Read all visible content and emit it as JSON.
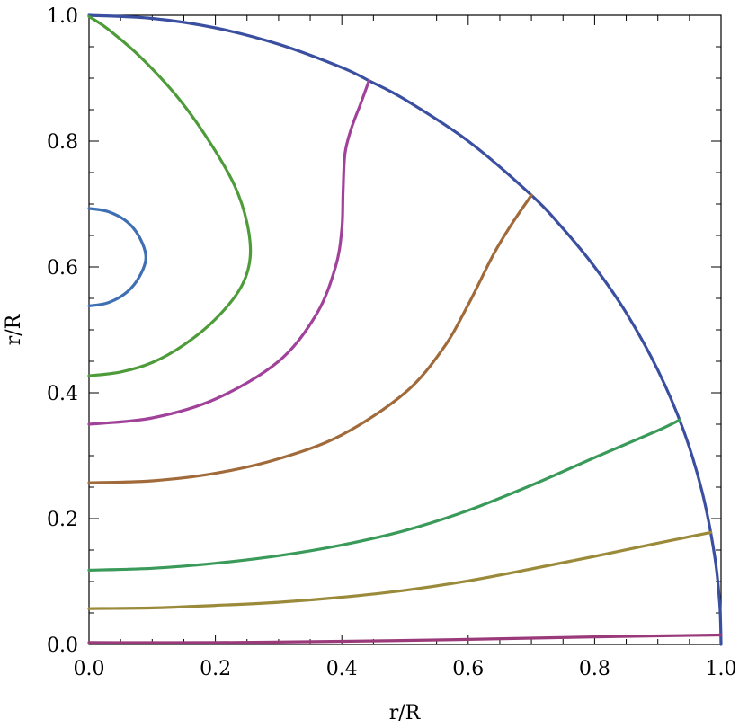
{
  "chart_data": {
    "type": "line",
    "title": "",
    "xlabel": "r/R",
    "ylabel": "r/R",
    "xlim": [
      0,
      1
    ],
    "ylim": [
      0,
      1
    ],
    "x_ticks": [
      "0.0",
      "0.2",
      "0.4",
      "0.6",
      "0.8",
      "1.0"
    ],
    "y_ticks": [
      "0.0",
      "0.2",
      "0.4",
      "0.6",
      "0.8",
      "1.0"
    ],
    "grid": false,
    "legend": "none",
    "series": [
      {
        "color": "#3a4fa0",
        "closed": false,
        "points": [
          [
            1.0,
            0.0
          ],
          [
            0.998,
            0.063
          ],
          [
            0.99,
            0.14
          ],
          [
            0.97,
            0.243
          ],
          [
            0.94,
            0.342
          ],
          [
            0.9,
            0.436
          ],
          [
            0.85,
            0.527
          ],
          [
            0.8,
            0.6
          ],
          [
            0.75,
            0.661
          ],
          [
            0.7,
            0.714
          ],
          [
            0.6,
            0.8
          ],
          [
            0.5,
            0.866
          ],
          [
            0.443,
            0.896
          ],
          [
            0.4,
            0.917
          ],
          [
            0.3,
            0.954
          ],
          [
            0.2,
            0.98
          ],
          [
            0.1,
            0.995
          ],
          [
            0.0,
            1.0
          ]
        ]
      },
      {
        "color": "#3f6fb3",
        "closed": true,
        "points": [
          [
            0.0,
            0.538
          ],
          [
            0.03,
            0.543
          ],
          [
            0.06,
            0.56
          ],
          [
            0.08,
            0.585
          ],
          [
            0.09,
            0.615
          ],
          [
            0.08,
            0.647
          ],
          [
            0.06,
            0.672
          ],
          [
            0.03,
            0.688
          ],
          [
            0.0,
            0.693
          ]
        ]
      },
      {
        "color": "#4e9b3a",
        "closed": false,
        "points": [
          [
            0.0,
            0.427
          ],
          [
            0.05,
            0.433
          ],
          [
            0.1,
            0.448
          ],
          [
            0.15,
            0.476
          ],
          [
            0.2,
            0.517
          ],
          [
            0.24,
            0.567
          ],
          [
            0.255,
            0.615
          ],
          [
            0.25,
            0.67
          ],
          [
            0.23,
            0.73
          ],
          [
            0.19,
            0.8
          ],
          [
            0.14,
            0.87
          ],
          [
            0.08,
            0.935
          ],
          [
            0.03,
            0.978
          ],
          [
            0.0,
            0.998
          ]
        ]
      },
      {
        "color": "#a0429a",
        "closed": false,
        "points": [
          [
            0.0,
            0.35
          ],
          [
            0.1,
            0.36
          ],
          [
            0.2,
            0.39
          ],
          [
            0.3,
            0.45
          ],
          [
            0.36,
            0.525
          ],
          [
            0.39,
            0.6
          ],
          [
            0.4,
            0.66
          ],
          [
            0.402,
            0.72
          ],
          [
            0.405,
            0.78
          ],
          [
            0.415,
            0.82
          ],
          [
            0.43,
            0.86
          ],
          [
            0.443,
            0.896
          ]
        ]
      },
      {
        "color": "#a06a3a",
        "closed": false,
        "points": [
          [
            0.0,
            0.257
          ],
          [
            0.1,
            0.26
          ],
          [
            0.2,
            0.272
          ],
          [
            0.3,
            0.295
          ],
          [
            0.4,
            0.333
          ],
          [
            0.5,
            0.4
          ],
          [
            0.56,
            0.47
          ],
          [
            0.6,
            0.54
          ],
          [
            0.64,
            0.62
          ],
          [
            0.67,
            0.67
          ],
          [
            0.7,
            0.714
          ]
        ]
      },
      {
        "color": "#3a9a5a",
        "closed": false,
        "points": [
          [
            0.0,
            0.118
          ],
          [
            0.1,
            0.121
          ],
          [
            0.2,
            0.129
          ],
          [
            0.3,
            0.141
          ],
          [
            0.4,
            0.158
          ],
          [
            0.5,
            0.181
          ],
          [
            0.6,
            0.213
          ],
          [
            0.7,
            0.253
          ],
          [
            0.8,
            0.297
          ],
          [
            0.9,
            0.34
          ],
          [
            0.935,
            0.357
          ]
        ]
      },
      {
        "color": "#9a8a3a",
        "closed": false,
        "points": [
          [
            0.0,
            0.057
          ],
          [
            0.1,
            0.058
          ],
          [
            0.2,
            0.062
          ],
          [
            0.3,
            0.067
          ],
          [
            0.4,
            0.075
          ],
          [
            0.5,
            0.086
          ],
          [
            0.6,
            0.101
          ],
          [
            0.7,
            0.12
          ],
          [
            0.8,
            0.14
          ],
          [
            0.9,
            0.161
          ],
          [
            0.984,
            0.178
          ]
        ]
      },
      {
        "color": "#9a3a7a",
        "closed": false,
        "points": [
          [
            0.0,
            0.003
          ],
          [
            0.2,
            0.003
          ],
          [
            0.4,
            0.005
          ],
          [
            0.6,
            0.008
          ],
          [
            0.8,
            0.012
          ],
          [
            1.0,
            0.015
          ]
        ]
      }
    ]
  }
}
